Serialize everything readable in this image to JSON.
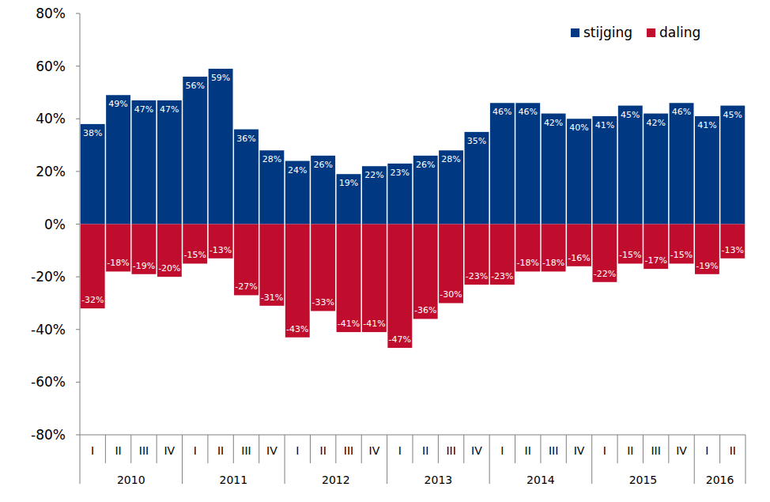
{
  "chart_data": {
    "type": "bar",
    "stacked": true,
    "data_labels": true,
    "grid": false,
    "legend": "top-right",
    "categories": [
      "I",
      "II",
      "III",
      "IV",
      "I",
      "II",
      "III",
      "IV",
      "I",
      "II",
      "III",
      "IV",
      "I",
      "II",
      "III",
      "IV",
      "I",
      "II",
      "III",
      "IV",
      "I",
      "II",
      "III",
      "IV",
      "I",
      "II"
    ],
    "category_groups": [
      "2010",
      "2010",
      "2010",
      "2010",
      "2011",
      "2011",
      "2011",
      "2011",
      "2012",
      "2012",
      "2012",
      "2012",
      "2013",
      "2013",
      "2013",
      "2013",
      "2014",
      "2014",
      "2014",
      "2014",
      "2015",
      "2015",
      "2015",
      "2015",
      "2016",
      "2016"
    ],
    "ylim": [
      -80,
      80
    ],
    "yticks": [
      {
        "value": -80,
        "label": "-80%"
      },
      {
        "value": -60,
        "label": "-60%"
      },
      {
        "value": -40,
        "label": "-40%"
      },
      {
        "value": -20,
        "label": "-20%"
      },
      {
        "value": 0,
        "label": "0%"
      },
      {
        "value": 20,
        "label": "20%"
      },
      {
        "value": 40,
        "label": "40%"
      },
      {
        "value": 60,
        "label": "60%"
      },
      {
        "value": 80,
        "label": "80%"
      }
    ],
    "series": [
      {
        "name": "stijging",
        "color": "#003882",
        "values": [
          38,
          49,
          47,
          47,
          56,
          59,
          36,
          28,
          24,
          26,
          19,
          22,
          23,
          26,
          28,
          35,
          46,
          46,
          42,
          40,
          41,
          45,
          42,
          46,
          41,
          45
        ],
        "value_labels": [
          "38%",
          "49%",
          "47%",
          "47%",
          "56%",
          "59%",
          "36%",
          "28%",
          "24%",
          "26%",
          "19%",
          "22%",
          "23%",
          "26%",
          "28%",
          "35%",
          "46%",
          "46%",
          "42%",
          "40%",
          "41%",
          "45%",
          "42%",
          "46%",
          "41%",
          "45%"
        ]
      },
      {
        "name": "daling",
        "color": "#c00d2e",
        "values": [
          -32,
          -18,
          -19,
          -20,
          -15,
          -13,
          -27,
          -31,
          -43,
          -33,
          -41,
          -41,
          -47,
          -36,
          -30,
          -23,
          -23,
          -18,
          -18,
          -16,
          -22,
          -15,
          -17,
          -15,
          -19,
          -13
        ],
        "value_labels": [
          "-32%",
          "-18%",
          "-19%",
          "-20%",
          "-15%",
          "-13%",
          "-27%",
          "-31%",
          "-43%",
          "-33%",
          "-41%",
          "-41%",
          "-47%",
          "-36%",
          "-30%",
          "-23%",
          "-23%",
          "-18%",
          "-18%",
          "-16%",
          "-22%",
          "-15%",
          "-17%",
          "-15%",
          "-19%",
          "-13%"
        ]
      }
    ]
  }
}
